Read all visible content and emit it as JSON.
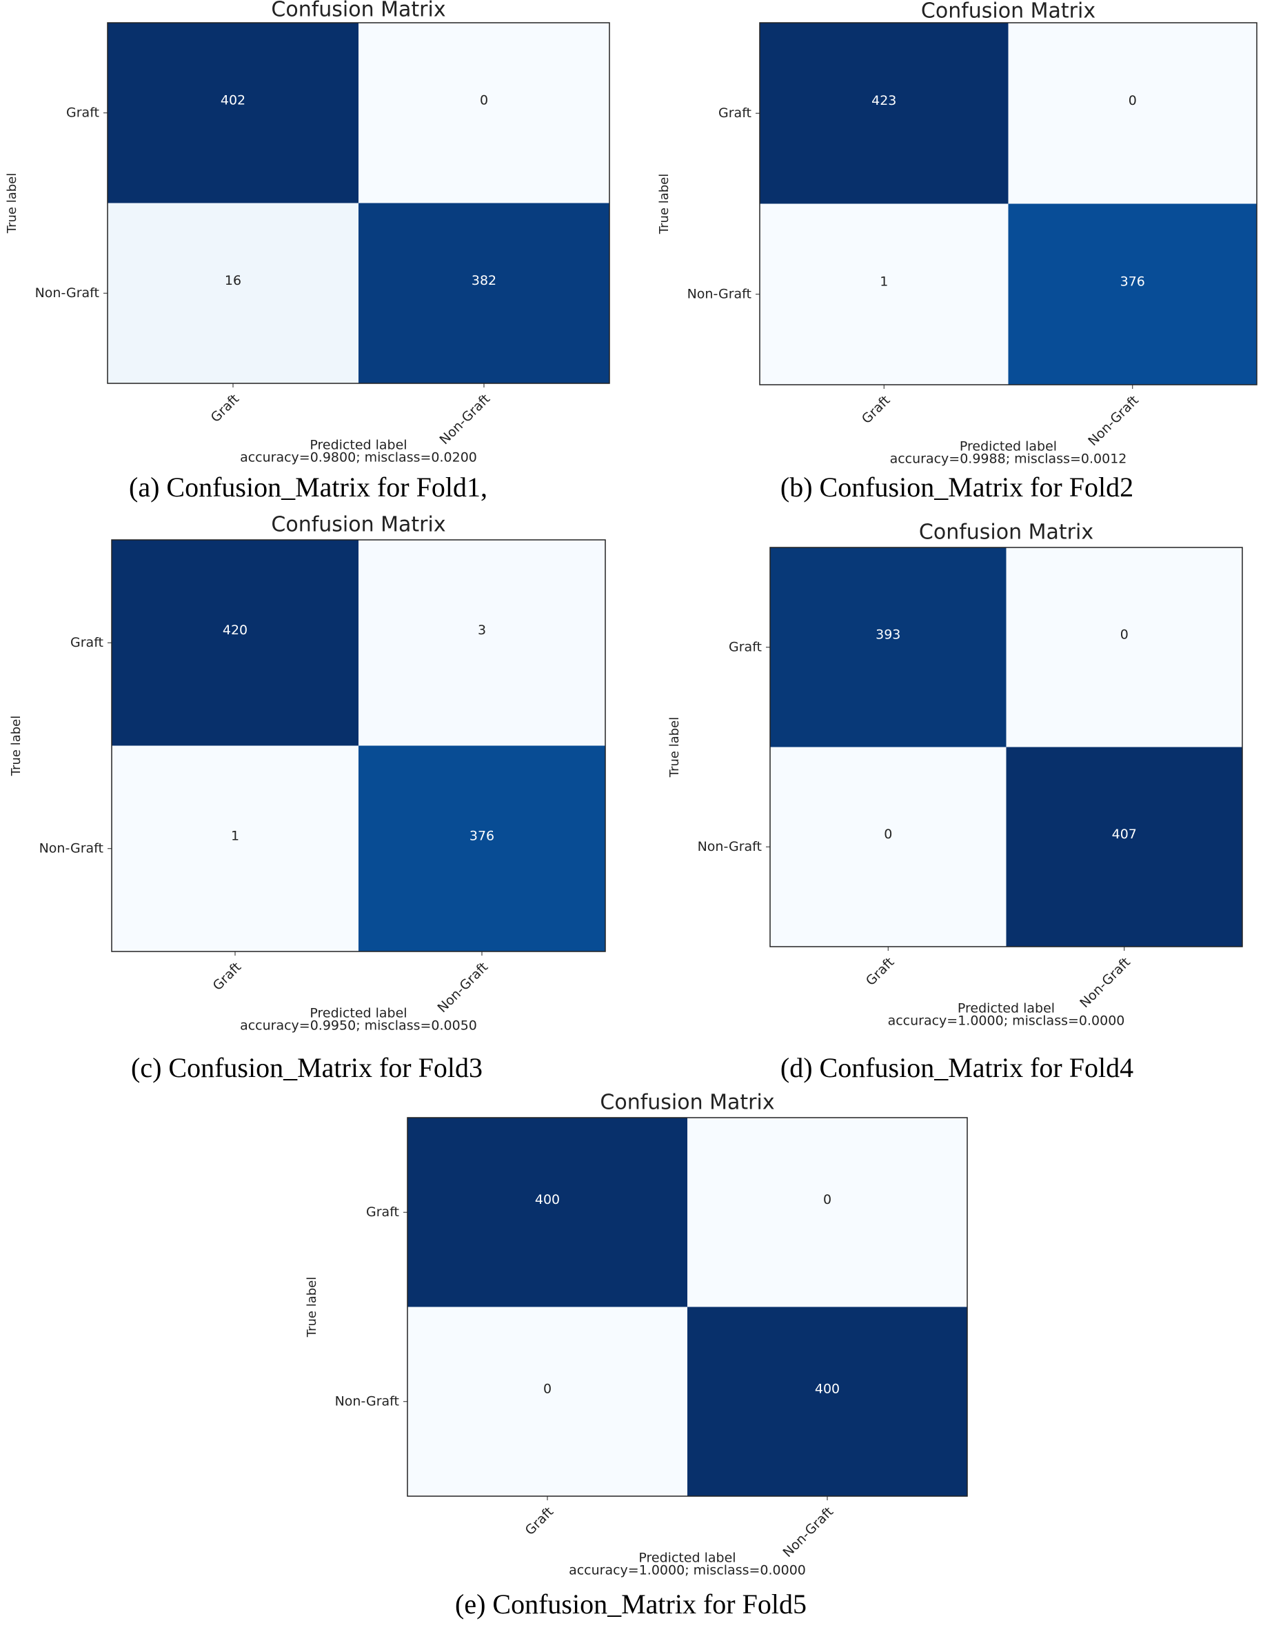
{
  "chart_data": [
    {
      "type": "heatmap",
      "title": "Confusion Matrix",
      "xlabel": "Predicted label",
      "ylabel": "True label",
      "note": "accuracy=0.9800; misclass=0.0200",
      "caption": "(a) Confusion_Matrix for Fold1,",
      "x_categories": [
        "Graft",
        "Non-Graft"
      ],
      "y_categories": [
        "Graft",
        "Non-Graft"
      ],
      "values": [
        [
          402,
          0
        ],
        [
          16,
          382
        ]
      ],
      "colormap": "Blues"
    },
    {
      "type": "heatmap",
      "title": "Confusion Matrix",
      "xlabel": "Predicted label",
      "ylabel": "True label",
      "note": "accuracy=0.9988; misclass=0.0012",
      "caption": "(b) Confusion_Matrix for Fold2",
      "x_categories": [
        "Graft",
        "Non-Graft"
      ],
      "y_categories": [
        "Graft",
        "Non-Graft"
      ],
      "values": [
        [
          423,
          0
        ],
        [
          1,
          376
        ]
      ],
      "colormap": "Blues"
    },
    {
      "type": "heatmap",
      "title": "Confusion Matrix",
      "xlabel": "Predicted label",
      "ylabel": "True label",
      "note": "accuracy=0.9950; misclass=0.0050",
      "caption": "(c) Confusion_Matrix for Fold3",
      "x_categories": [
        "Graft",
        "Non-Graft"
      ],
      "y_categories": [
        "Graft",
        "Non-Graft"
      ],
      "values": [
        [
          420,
          3
        ],
        [
          1,
          376
        ]
      ],
      "colormap": "Blues"
    },
    {
      "type": "heatmap",
      "title": "Confusion Matrix",
      "xlabel": "Predicted label",
      "ylabel": "True label",
      "note": "accuracy=1.0000; misclass=0.0000",
      "caption": "(d) Confusion_Matrix for Fold4",
      "x_categories": [
        "Graft",
        "Non-Graft"
      ],
      "y_categories": [
        "Graft",
        "Non-Graft"
      ],
      "values": [
        [
          393,
          0
        ],
        [
          0,
          407
        ]
      ],
      "colormap": "Blues"
    },
    {
      "type": "heatmap",
      "title": "Confusion Matrix",
      "xlabel": "Predicted label",
      "ylabel": "True label",
      "note": "accuracy=1.0000; misclass=0.0000",
      "caption": "(e) Confusion_Matrix for Fold5",
      "x_categories": [
        "Graft",
        "Non-Graft"
      ],
      "y_categories": [
        "Graft",
        "Non-Graft"
      ],
      "values": [
        [
          400,
          0
        ],
        [
          0,
          400
        ]
      ],
      "colormap": "Blues"
    }
  ]
}
